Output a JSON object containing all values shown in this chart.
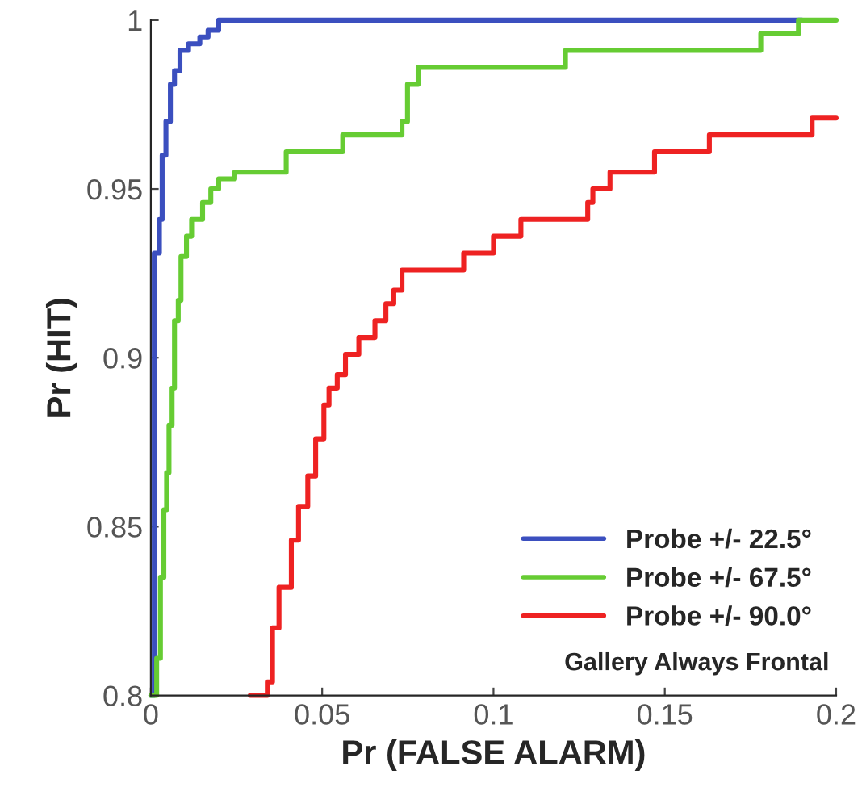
{
  "chart_data": {
    "type": "step",
    "xlabel": "Pr (FALSE ALARM)",
    "ylabel": "Pr (HIT)",
    "xlim": [
      0,
      0.2
    ],
    "xticks": [
      0,
      0.05,
      0.1,
      0.15,
      0.2
    ],
    "ylim": [
      0.8,
      1
    ],
    "yticks": [
      0.8,
      0.85,
      0.9,
      0.95,
      1
    ],
    "grid": false,
    "legend": "bottom right",
    "line_style": "solid",
    "annotations": [
      "Gallery Always Frontal"
    ],
    "series": [
      {
        "name": "Probe +/- 22.5°",
        "color": "#3b4fbf",
        "x": [
          0,
          0.001,
          0.0025,
          0.0033,
          0.0044,
          0.0057,
          0.0069,
          0.0085,
          0.011,
          0.0143,
          0.0167,
          0.0198,
          0.19
        ],
        "values": [
          0.8,
          0.931,
          0.941,
          0.96,
          0.97,
          0.981,
          0.985,
          0.991,
          0.993,
          0.995,
          0.997,
          1.0,
          1.0
        ]
      },
      {
        "name": "Probe +/- 67.5°",
        "color": "#66cc33",
        "x": [
          0,
          0.0017,
          0.0028,
          0.0038,
          0.0046,
          0.0053,
          0.0062,
          0.0069,
          0.008,
          0.0088,
          0.0104,
          0.0119,
          0.0151,
          0.0175,
          0.0198,
          0.0245,
          0.0395,
          0.056,
          0.0733,
          0.0749,
          0.078,
          0.121,
          0.178,
          0.189,
          0.2
        ],
        "values": [
          0.8,
          0.811,
          0.835,
          0.855,
          0.866,
          0.88,
          0.891,
          0.911,
          0.917,
          0.93,
          0.936,
          0.941,
          0.946,
          0.95,
          0.953,
          0.955,
          0.961,
          0.966,
          0.97,
          0.981,
          0.986,
          0.991,
          0.996,
          1.0,
          1.0
        ]
      },
      {
        "name": "Probe +/- 90.0°",
        "color": "#ee2222",
        "x": [
          0.029,
          0.034,
          0.0355,
          0.0374,
          0.041,
          0.0431,
          0.0458,
          0.0481,
          0.0505,
          0.052,
          0.0544,
          0.0568,
          0.0607,
          0.0654,
          0.0686,
          0.0709,
          0.0733,
          0.0913,
          0.1,
          0.108,
          0.1275,
          0.129,
          0.134,
          0.147,
          0.163,
          0.193,
          0.2
        ],
        "values": [
          0.8,
          0.804,
          0.82,
          0.832,
          0.846,
          0.856,
          0.865,
          0.876,
          0.886,
          0.891,
          0.895,
          0.901,
          0.906,
          0.911,
          0.916,
          0.92,
          0.926,
          0.931,
          0.936,
          0.941,
          0.946,
          0.95,
          0.955,
          0.961,
          0.966,
          0.971,
          0.971
        ]
      }
    ]
  }
}
